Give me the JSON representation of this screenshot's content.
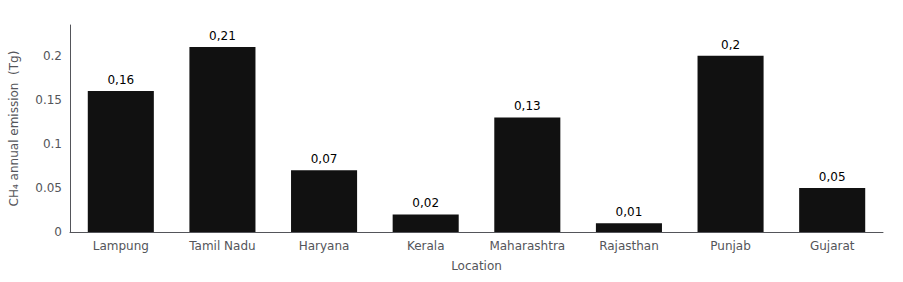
{
  "chart_data": {
    "type": "bar",
    "categories": [
      "Lampung",
      "Tamil Nadu",
      "Haryana",
      "Kerala",
      "Maharashtra",
      "Rajasthan",
      "Punjab",
      "Gujarat"
    ],
    "values": [
      0.16,
      0.21,
      0.07,
      0.02,
      0.13,
      0.01,
      0.2,
      0.05
    ],
    "value_labels": [
      "0,16",
      "0,21",
      "0,07",
      "0,02",
      "0,13",
      "0,01",
      "0,2",
      "0,05"
    ],
    "data_labels": true,
    "color": "#111111",
    "xlabel": "Location",
    "ylabel": "CH₄ annual emission  (Tg)",
    "ylim": [
      0,
      0.235
    ],
    "yticks": [
      0,
      0.05,
      0.1,
      0.15,
      0.2
    ],
    "grid": false
  }
}
